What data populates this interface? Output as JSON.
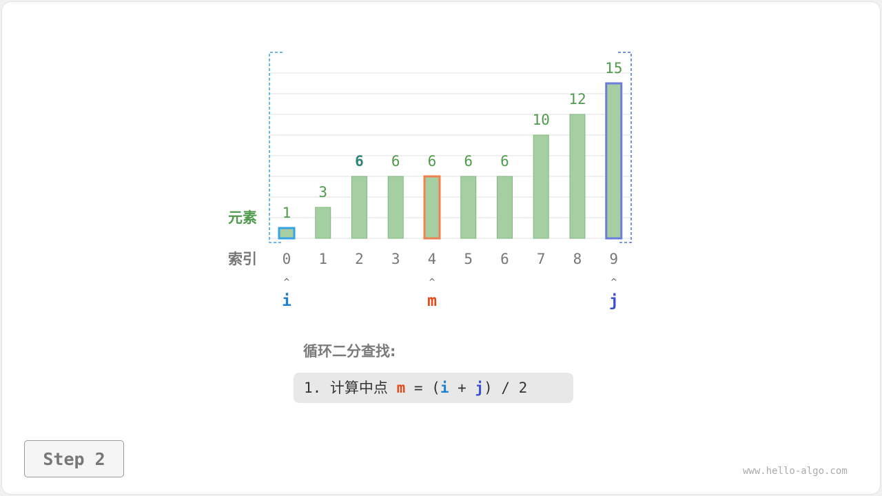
{
  "labels": {
    "elements": "元素",
    "indices": "索引"
  },
  "array": [
    1,
    3,
    6,
    6,
    6,
    6,
    6,
    10,
    12,
    15
  ],
  "highlighted_value_index": 2,
  "pointers": [
    {
      "name": "i",
      "index": 0,
      "color": "#1f7fd0"
    },
    {
      "name": "m",
      "index": 4,
      "color": "#e64a19"
    },
    {
      "name": "j",
      "index": 9,
      "color": "#3b50cf"
    }
  ],
  "colors": {
    "bar": "#a5cfa3",
    "bar_border": "#7fb87c",
    "value_text": "#4f9a4c",
    "highlight_text": "#2e8577",
    "index_text": "#777777"
  },
  "description": {
    "title": "循环二分查找:",
    "step_prefix": "1. 计算中点 ",
    "m": "m",
    "eq": " = (",
    "i": "i",
    "plus": " + ",
    "j": "j",
    "suffix": ") / 2"
  },
  "step_label": "Step 2",
  "watermark": "www.hello-algo.com"
}
